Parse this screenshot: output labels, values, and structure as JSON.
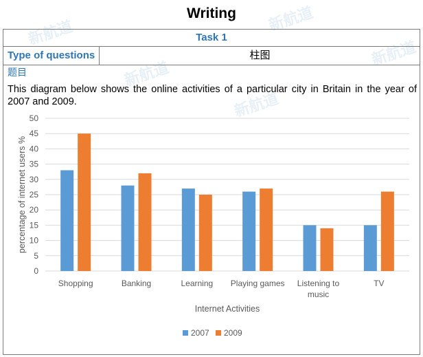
{
  "header": {
    "title": "Writing"
  },
  "task": {
    "name": "Task 1",
    "type_label": "Type of questions",
    "type_value": "柱图",
    "section_label": "题目",
    "prompt": "This diagram below shows the online activities of a particular city in Britain in the year of 2007 and 2009."
  },
  "watermark": {
    "text": "新航道",
    "sub": "NEW CHANNEL"
  },
  "colors": {
    "series_2007": "#5b9bd5",
    "series_2009": "#ed7d31",
    "grid": "#d9d9d9",
    "accent": "#2e75b6"
  },
  "chart_data": {
    "type": "bar",
    "title": "",
    "xlabel": "Internet Activities",
    "ylabel": "percentage of internet users %",
    "categories": [
      "Shopping",
      "Banking",
      "Learning",
      "Playing games",
      "Listening to music",
      "TV"
    ],
    "category_lines": [
      [
        "Shopping"
      ],
      [
        "Banking"
      ],
      [
        "Learning"
      ],
      [
        "Playing games"
      ],
      [
        "Listening to",
        "music"
      ],
      [
        "TV"
      ]
    ],
    "series": [
      {
        "name": "2007",
        "values": [
          33,
          28,
          27,
          26,
          15,
          15
        ]
      },
      {
        "name": "2009",
        "values": [
          45,
          32,
          25,
          27,
          14,
          26
        ]
      }
    ],
    "ylim": [
      0,
      50
    ],
    "yticks": [
      0,
      5,
      10,
      15,
      20,
      25,
      30,
      35,
      40,
      45,
      50
    ],
    "grid": true,
    "legend": "bottom"
  }
}
